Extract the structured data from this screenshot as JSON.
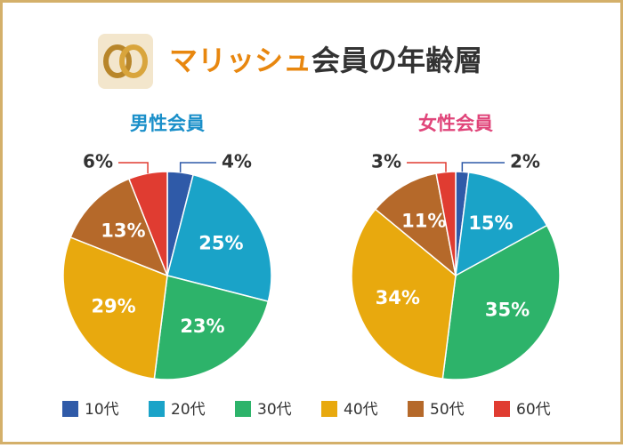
{
  "title_parts": [
    "マリッシュ",
    "会員の年齢層"
  ],
  "chart_data": [
    {
      "type": "pie",
      "title": "男性会員",
      "categories": [
        "10代",
        "20代",
        "30代",
        "40代",
        "50代",
        "60代"
      ],
      "values": [
        4,
        25,
        23,
        29,
        13,
        6
      ],
      "value_labels": [
        "4%",
        "25%",
        "23%",
        "29%",
        "13%",
        "6%"
      ],
      "colors": [
        "#2f5aa8",
        "#1aa3c8",
        "#2db36a",
        "#e8a90e",
        "#b5692a",
        "#e03c31"
      ],
      "title_color": "#1a8fc9"
    },
    {
      "type": "pie",
      "title": "女性会員",
      "categories": [
        "10代",
        "20代",
        "30代",
        "40代",
        "50代",
        "60代"
      ],
      "values": [
        2,
        15,
        35,
        34,
        11,
        3
      ],
      "value_labels": [
        "2%",
        "15%",
        "35%",
        "34%",
        "11%",
        "3%"
      ],
      "colors": [
        "#2f5aa8",
        "#1aa3c8",
        "#2db36a",
        "#e8a90e",
        "#b5692a",
        "#e03c31"
      ],
      "title_color": "#e0457a"
    }
  ]
}
